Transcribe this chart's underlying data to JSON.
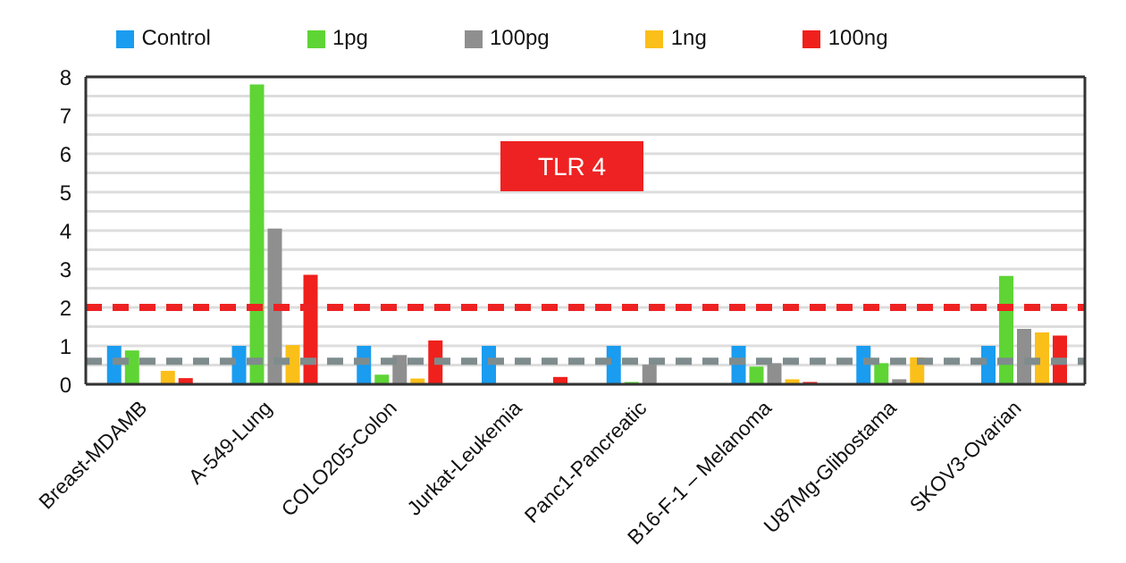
{
  "chart_data": {
    "type": "bar",
    "title": "TLR 4",
    "categories": [
      "Breast-MDAMB",
      "A-549-Lung",
      "COLO205-Colon",
      "Jurkat-Leukemia",
      "Panc1-Pancreatic",
      "B16-F-1 – Melanoma",
      "U87Mg-Glibostama",
      "SKOV3-Ovarian"
    ],
    "series": [
      {
        "name": "Control",
        "color": "#1a9cf0",
        "values": [
          1,
          1,
          1,
          1,
          1,
          1,
          1,
          1
        ]
      },
      {
        "name": "1pg",
        "color": "#5ed535",
        "values": [
          0.88,
          7.8,
          0.25,
          0,
          0.06,
          0.46,
          0.55,
          2.82
        ]
      },
      {
        "name": "100pg",
        "color": "#8f8f8f",
        "values": [
          0.02,
          4.05,
          0.76,
          0.02,
          0.51,
          0.55,
          0.13,
          1.44
        ]
      },
      {
        "name": "1ng",
        "color": "#fbbf1a",
        "values": [
          0.35,
          1.02,
          0.15,
          0,
          0,
          0.13,
          0.7,
          1.35
        ]
      },
      {
        "name": "100ng",
        "color": "#f0201c",
        "values": [
          0.16,
          2.85,
          1.14,
          0.19,
          0,
          0.06,
          0,
          1.27
        ]
      }
    ],
    "ylim": [
      0,
      8
    ],
    "yticks": [
      0,
      {
        "value": 0.5,
        "label": null
      },
      1,
      {
        "value": 1.5,
        "label": null
      },
      2,
      {
        "value": 2.5,
        "label": null
      },
      3,
      {
        "value": 3.5,
        "label": null
      },
      4,
      {
        "value": 4.5,
        "label": null
      },
      5,
      {
        "value": 5.5,
        "label": null
      },
      6,
      {
        "value": 6.5,
        "label": null
      },
      7,
      {
        "value": 7.5,
        "label": null
      },
      8
    ],
    "grid": "y",
    "legend": "top",
    "ref_lines": [
      {
        "axis": "y",
        "value": 2,
        "color": "#ee2222",
        "line_style": "dashed"
      },
      {
        "axis": "y",
        "value": 0.6,
        "color": "#7f8c8d",
        "line_style": "dashed"
      }
    ]
  }
}
